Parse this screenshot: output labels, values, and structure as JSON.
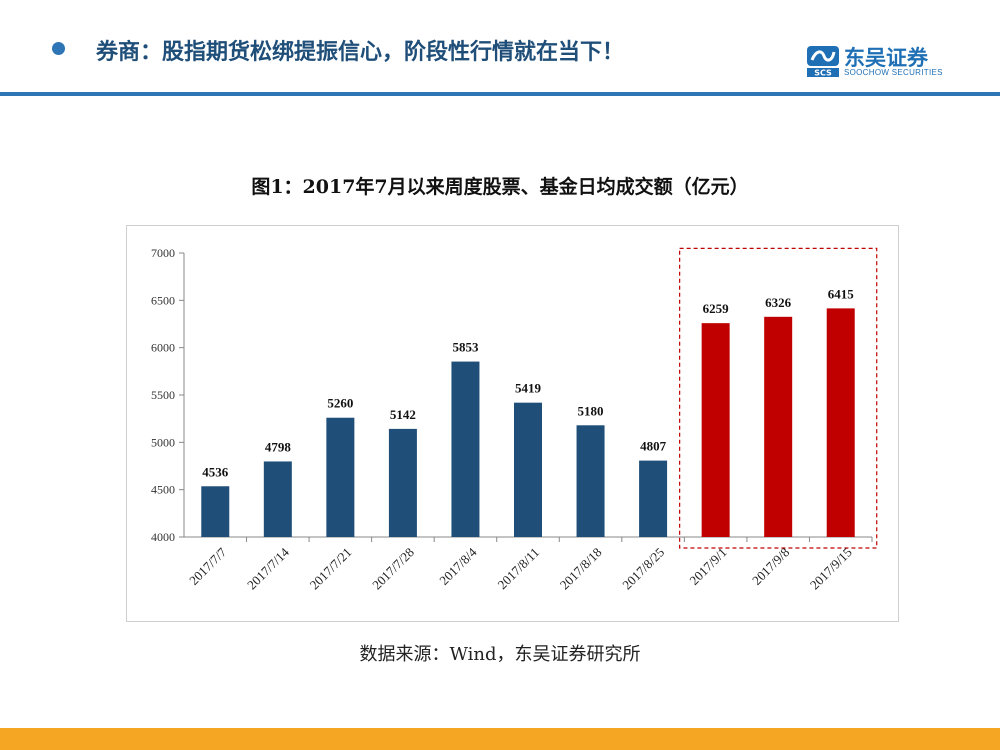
{
  "header": {
    "headline": "券商：股指期货松绑提振信心，阶段性行情就在当下！",
    "logo_name": "东吴证券",
    "logo_sub": "SOOCHOW SECURITIES",
    "logo_mark": "SCS"
  },
  "colors": {
    "accent": "#2e75b6",
    "bar_primary": "#1f4e79",
    "bar_highlight": "#c00000",
    "footer": "#f5a623"
  },
  "chart_data": {
    "type": "bar",
    "title": "图1：2017年7月以来周度股票、基金日均成交额（亿元）",
    "categories": [
      "2017/7/7",
      "2017/7/14",
      "2017/7/21",
      "2017/7/28",
      "2017/8/4",
      "2017/8/11",
      "2017/8/18",
      "2017/8/25",
      "2017/9/1",
      "2017/9/8",
      "2017/9/15"
    ],
    "values": [
      4536,
      4798,
      5260,
      5142,
      5853,
      5419,
      5180,
      4807,
      6259,
      6326,
      6415
    ],
    "highlighted": [
      false,
      false,
      false,
      false,
      false,
      false,
      false,
      false,
      true,
      true,
      true
    ],
    "ylim": [
      4000,
      7000
    ],
    "yticks": [
      4000,
      4500,
      5000,
      5500,
      6000,
      6500,
      7000
    ],
    "xlabel": "",
    "ylabel": "",
    "grid": false
  },
  "source_note": "数据来源：Wind，东吴证券研究所"
}
